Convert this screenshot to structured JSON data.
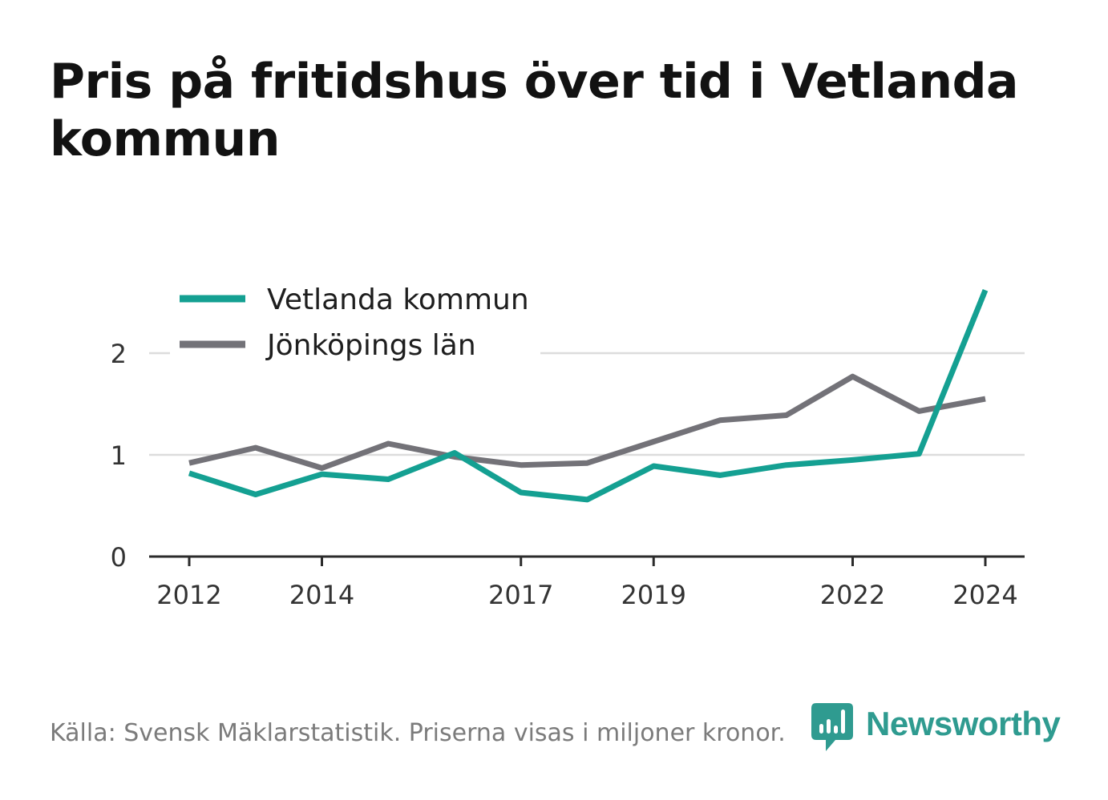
{
  "title": "Pris på fritidshus över tid i Vetlanda kommun",
  "source": "Källa: Svensk Mäklarstatistik. Priserna visas i miljoner kronor.",
  "brand": {
    "name": "Newsworthy",
    "color": "#2f9b90"
  },
  "chart_data": {
    "type": "line",
    "x": [
      2012,
      2013,
      2014,
      2015,
      2016,
      2017,
      2018,
      2019,
      2020,
      2021,
      2022,
      2023,
      2024
    ],
    "x_ticks": [
      2012,
      2014,
      2017,
      2019,
      2022,
      2024
    ],
    "y_ticks": [
      0,
      1,
      2
    ],
    "ylim": [
      0,
      2.65
    ],
    "grid": true,
    "legend_position": "top-left",
    "series": [
      {
        "name": "Vetlanda kommun",
        "color": "#14a092",
        "values": [
          0.82,
          0.61,
          0.81,
          0.76,
          1.02,
          0.63,
          0.56,
          0.89,
          0.8,
          0.9,
          0.95,
          1.01,
          2.62
        ]
      },
      {
        "name": "Jönköpings län",
        "color": "#737278",
        "values": [
          0.92,
          1.07,
          0.87,
          1.11,
          0.98,
          0.9,
          0.92,
          1.13,
          1.34,
          1.39,
          1.77,
          1.43,
          1.55
        ]
      }
    ]
  }
}
